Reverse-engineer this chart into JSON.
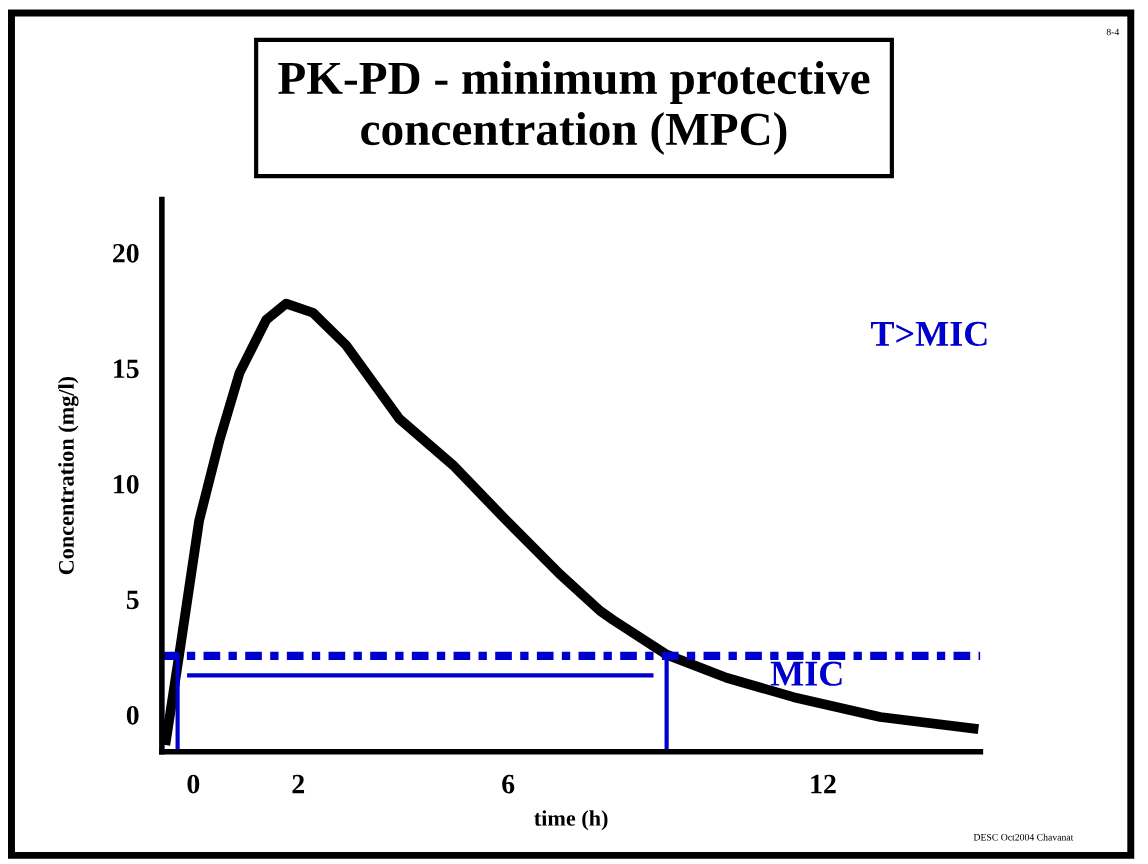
{
  "chart_data": {
    "type": "line",
    "title": "PK-PD - minimum protective\nconcentration (MPC)",
    "xlabel": "time (h)",
    "ylabel": "Concentration (mg/l)",
    "series": [
      {
        "color": "#000000",
        "x": [
          -0.52,
          -0.27,
          0.11,
          0.5,
          0.88,
          1.39,
          1.77,
          2.28,
          2.91,
          3.93,
          4.95,
          5.97,
          6.98,
          7.75,
          8.0,
          9.02,
          10.16,
          11.44,
          13.09,
          14.87
        ],
        "values": [
          -1.1,
          2.6,
          8.4,
          11.9,
          14.8,
          17.1,
          17.8,
          17.4,
          16.0,
          12.8,
          10.8,
          8.4,
          6.1,
          4.5,
          4.1,
          2.6,
          1.6,
          0.76,
          -0.1,
          -0.6
        ]
      },
      {
        "color": "#0000cc",
        "x": [
          -0.08,
          8.73
        ],
        "values": [
          1.7,
          1.7
        ]
      },
      {
        "color": "#0000cc",
        "x": [
          -0.3,
          -0.3
        ],
        "values": [
          -1.6,
          2.55
        ]
      },
      {
        "color": "#0000cc",
        "x": [
          9.02,
          9.02
        ],
        "values": [
          -1.6,
          2.55
        ]
      }
    ],
    "ref_lines": [
      {
        "axis": "y",
        "value": 2.55,
        "label": "MIC",
        "color": "#0000cc",
        "line_style": "dashed"
      }
    ],
    "annotations": [
      "T>MIC",
      "DESC Oct2004 Chavanat",
      "8-4"
    ],
    "xlim": [
      -0.6,
      15
    ],
    "ylim": [
      -1.6,
      22.3
    ],
    "xticks": [
      0,
      2,
      6,
      12
    ],
    "yticks": [
      0,
      5,
      10,
      15,
      20
    ],
    "grid": false,
    "legend": false,
    "marker": "none",
    "line_style": "solid"
  }
}
